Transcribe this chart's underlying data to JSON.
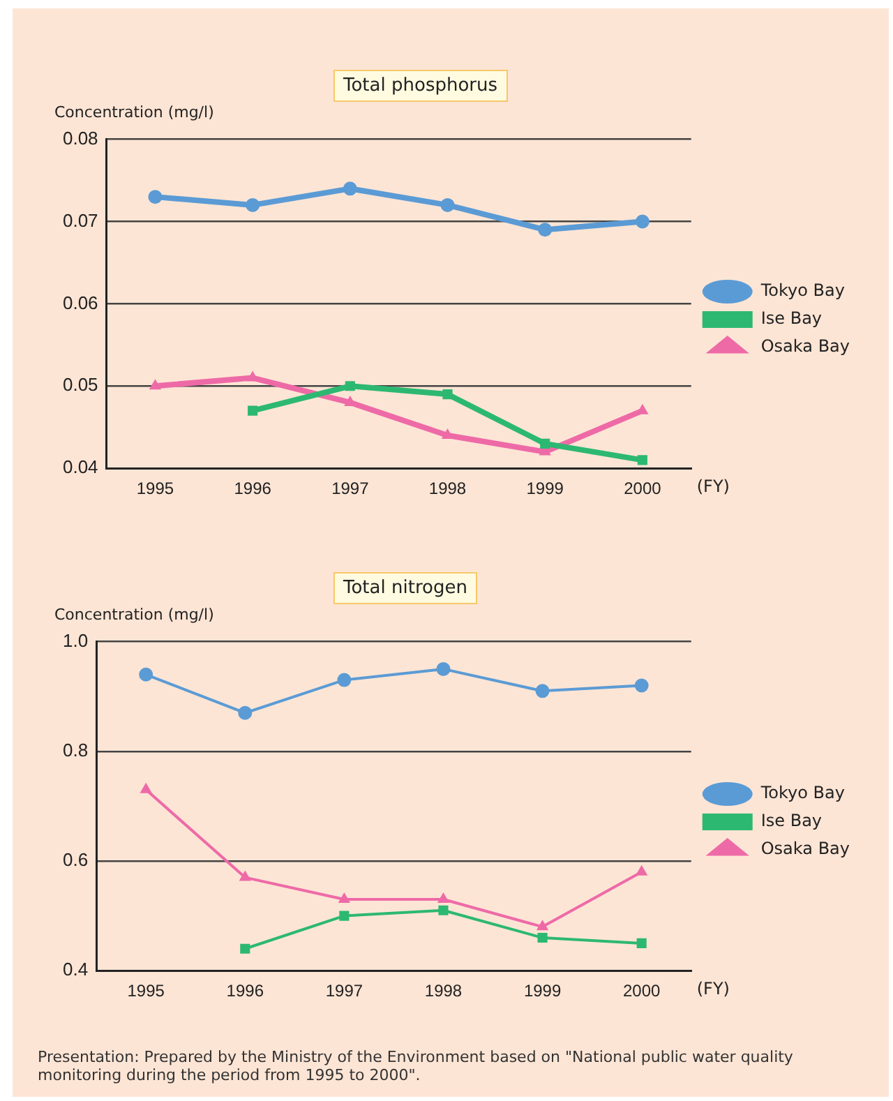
{
  "chart_data": [
    {
      "type": "line",
      "title": "Total phosphorus",
      "ylabel": "Concentration (mg/l)",
      "xlabel": "(FY)",
      "categories": [
        "1995",
        "1996",
        "1997",
        "1998",
        "1999",
        "2000"
      ],
      "series": [
        {
          "name": "Tokyo Bay",
          "color": "#5b9bd5",
          "marker": "circle",
          "values": [
            0.073,
            0.072,
            0.074,
            0.072,
            0.069,
            0.07
          ]
        },
        {
          "name": "Ise Bay",
          "color": "#2db872",
          "marker": "square",
          "values": [
            null,
            0.047,
            0.05,
            0.049,
            0.043,
            0.041
          ]
        },
        {
          "name": "Osaka Bay",
          "color": "#ee6aa7",
          "marker": "triangle",
          "values": [
            0.05,
            0.051,
            0.048,
            0.044,
            0.042,
            0.047
          ]
        }
      ],
      "ylim": [
        0.04,
        0.08
      ],
      "yticks": [
        {
          "value": 0.04,
          "label": "0.04"
        },
        {
          "value": 0.05,
          "label": "0.05"
        },
        {
          "value": 0.06,
          "label": "0.06"
        },
        {
          "value": 0.07,
          "label": "0.07"
        },
        {
          "value": 0.08,
          "label": "0.08"
        }
      ],
      "grid": "y",
      "legend": "right",
      "line_style": "solid"
    },
    {
      "type": "line",
      "title": "Total nitrogen",
      "ylabel": "Concentration (mg/l)",
      "xlabel": "(FY)",
      "categories": [
        "1995",
        "1996",
        "1997",
        "1998",
        "1999",
        "2000"
      ],
      "series": [
        {
          "name": "Tokyo Bay",
          "color": "#5b9bd5",
          "marker": "circle",
          "values": [
            0.94,
            0.87,
            0.93,
            0.95,
            0.91,
            0.92
          ]
        },
        {
          "name": "Ise Bay",
          "color": "#2db872",
          "marker": "square",
          "values": [
            null,
            0.44,
            0.5,
            0.51,
            0.46,
            0.45
          ]
        },
        {
          "name": "Osaka Bay",
          "color": "#ee6aa7",
          "marker": "triangle",
          "values": [
            0.73,
            0.57,
            0.53,
            0.53,
            0.48,
            0.58
          ]
        }
      ],
      "ylim": [
        0.4,
        1.0
      ],
      "yticks": [
        {
          "value": 0.4,
          "label": "0.4"
        },
        {
          "value": 0.6,
          "label": "0.6"
        },
        {
          "value": 0.8,
          "label": "0.8"
        },
        {
          "value": 1.0,
          "label": "1.0"
        }
      ],
      "grid": "y",
      "legend": "right",
      "line_style": "solid",
      "annotations": [
        "Presentation: Prepared by the Ministry of the Environment based on \"National public water quality monitoring during the period from 1995 to 2000\"."
      ]
    }
  ]
}
